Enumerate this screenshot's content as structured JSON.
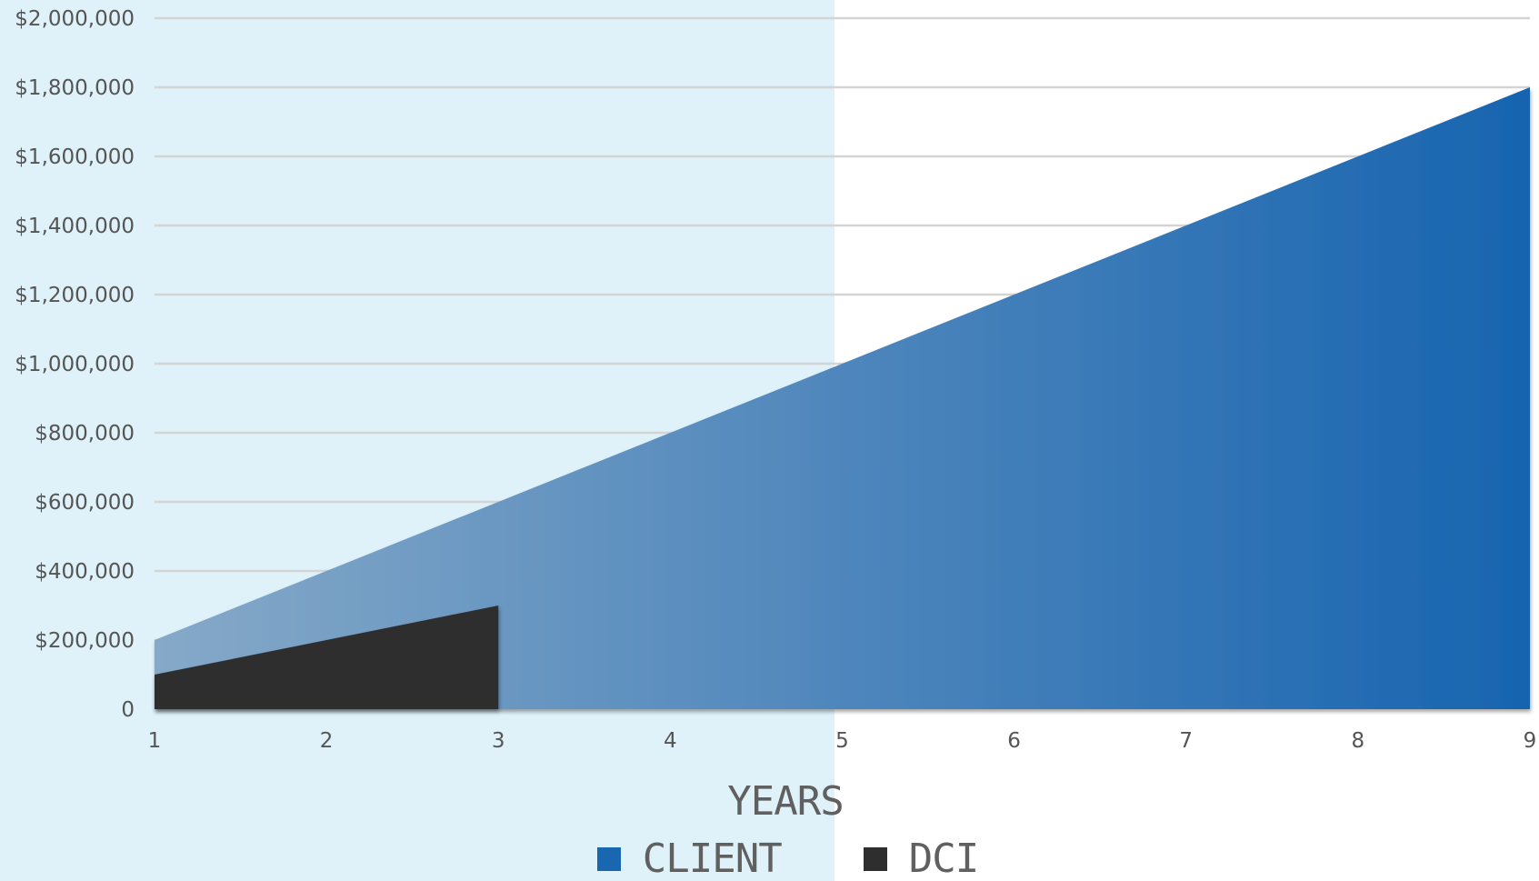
{
  "chart_data": {
    "type": "area",
    "title": "",
    "xlabel": "YEARS",
    "ylabel": "",
    "x": [
      1,
      2,
      3,
      4,
      5,
      6,
      7,
      8,
      9
    ],
    "ylim": [
      0,
      2000000
    ],
    "y_ticks": [
      "0",
      "$200,000",
      "$400,000",
      "$600,000",
      "$800,000",
      "$1,000,000",
      "$1,200,000",
      "$1,400,000",
      "$1,600,000",
      "$1,800,000",
      "$2,000,000"
    ],
    "x_ticks": [
      "1",
      "2",
      "3",
      "4",
      "5",
      "6",
      "7",
      "8",
      "9"
    ],
    "grid": true,
    "legend_position": "bottom",
    "series": [
      {
        "name": "CLIENT",
        "x": [
          1,
          2,
          3,
          4,
          5,
          6,
          7,
          8,
          9
        ],
        "values": [
          200000,
          400000,
          600000,
          800000,
          1000000,
          1200000,
          1400000,
          1600000,
          1800000
        ],
        "color": "#1a67b1"
      },
      {
        "name": "DCI",
        "x": [
          1,
          2,
          3
        ],
        "values": [
          100000,
          200000,
          300000
        ],
        "color": "#2e2e2e"
      }
    ]
  },
  "colors": {
    "client_light": "#86a9c8",
    "client_dark": "#1764b0",
    "dci": "#2e2e2e",
    "background_panel": "#dff1f9",
    "grid": "#d4d4d4"
  }
}
